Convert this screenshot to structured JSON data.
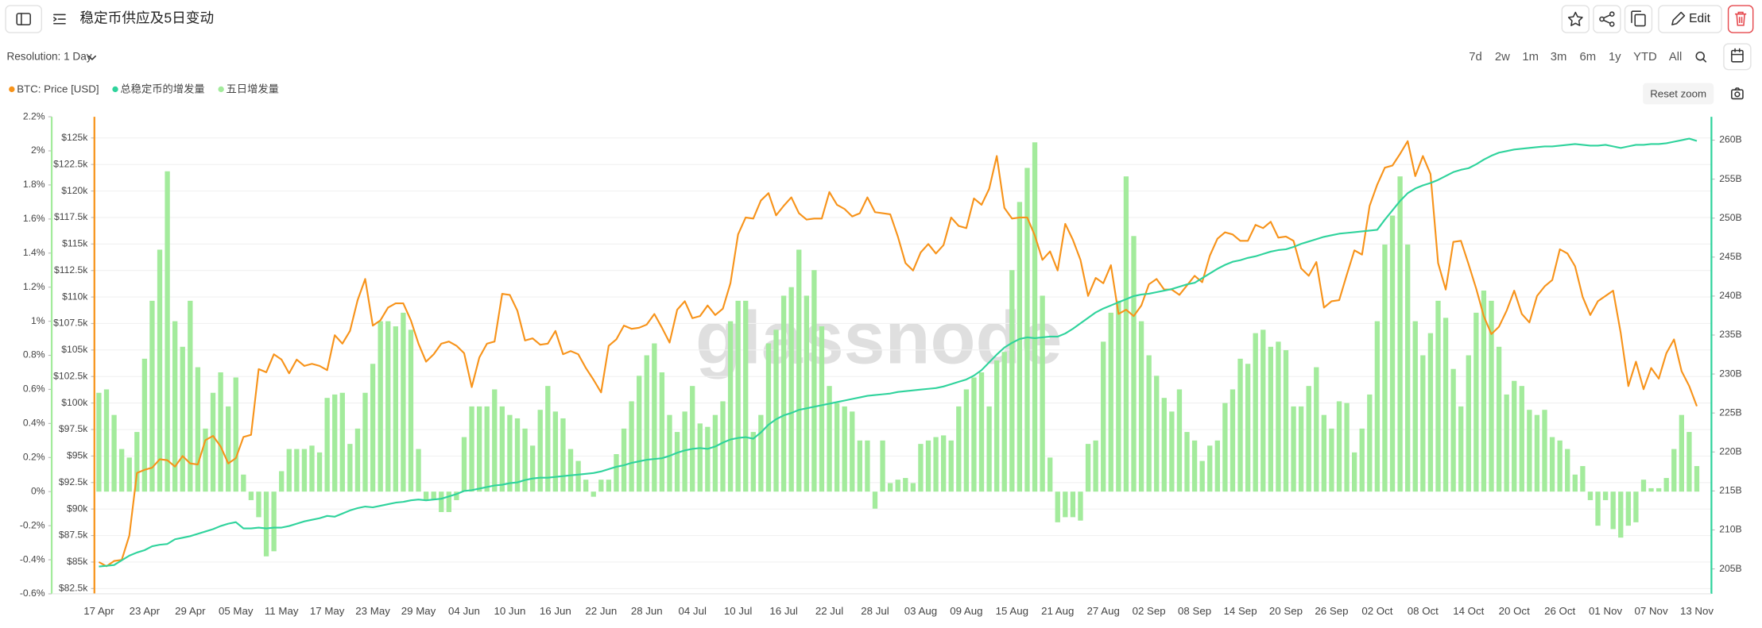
{
  "toolbar": {
    "resolution": "Resolution: 1 Day",
    "ranges": [
      "7d",
      "2w",
      "1m",
      "3m",
      "6m",
      "1y",
      "YTD",
      "All"
    ],
    "edit": "Edit",
    "reset_zoom": "Reset zoom",
    "watermark": "glassnode"
  },
  "chart_data": {
    "type": "combo",
    "title": "稳定币供应及5日变动",
    "grid": true,
    "categories": [
      "17 Apr",
      null,
      null,
      null,
      null,
      null,
      "23 Apr",
      null,
      null,
      null,
      null,
      null,
      "29 Apr",
      null,
      null,
      null,
      null,
      null,
      "05 May",
      null,
      null,
      null,
      null,
      null,
      "11 May",
      null,
      null,
      null,
      null,
      null,
      "17 May",
      null,
      null,
      null,
      null,
      null,
      "23 May",
      null,
      null,
      null,
      null,
      null,
      "29 May",
      null,
      null,
      null,
      null,
      null,
      "04 Jun",
      null,
      null,
      null,
      null,
      null,
      "10 Jun",
      null,
      null,
      null,
      null,
      null,
      "16 Jun",
      null,
      null,
      null,
      null,
      null,
      "22 Jun",
      null,
      null,
      null,
      null,
      null,
      "28 Jun",
      null,
      null,
      null,
      null,
      null,
      "04 Jul",
      null,
      null,
      null,
      null,
      null,
      "10 Jul",
      null,
      null,
      null,
      null,
      null,
      "16 Jul",
      null,
      null,
      null,
      null,
      null,
      "22 Jul",
      null,
      null,
      null,
      null,
      null,
      "28 Jul",
      null,
      null,
      null,
      null,
      null,
      "03 Aug",
      null,
      null,
      null,
      null,
      null,
      "09 Aug",
      null,
      null,
      null,
      null,
      null,
      "15 Aug",
      null,
      null,
      null,
      null,
      null,
      "21 Aug",
      null,
      null,
      null,
      null,
      null,
      "27 Aug",
      null,
      null,
      null,
      null,
      null,
      "02 Sep",
      null,
      null,
      null,
      null,
      null,
      "08 Sep",
      null,
      null,
      null,
      null,
      null,
      "14 Sep",
      null,
      null,
      null,
      null,
      null,
      "20 Sep",
      null,
      null,
      null,
      null,
      null,
      "26 Sep",
      null,
      null,
      null,
      null,
      null,
      "02 Oct",
      null,
      null,
      null,
      null,
      null,
      "08 Oct",
      null,
      null,
      null,
      null,
      null,
      "14 Oct",
      null,
      null,
      null,
      null,
      null,
      "20 Oct",
      null,
      null,
      null,
      null,
      null,
      "26 Oct",
      null,
      null,
      null,
      null,
      null,
      "01 Nov",
      null,
      null,
      null,
      null,
      null,
      "07 Nov",
      null,
      null,
      null,
      null,
      null,
      "13 Nov"
    ],
    "ylim": [
      -0.6,
      2.2
    ],
    "yticks": [
      {
        "value": -0.6,
        "label": "-0.6%"
      },
      {
        "value": -0.4,
        "label": "-0.4%"
      },
      {
        "value": -0.2,
        "label": "-0.2%"
      },
      {
        "value": 0,
        "label": "0%"
      },
      {
        "value": 0.2,
        "label": "0.2%"
      },
      {
        "value": 0.4,
        "label": "0.4%"
      },
      {
        "value": 0.6,
        "label": "0.6%"
      },
      {
        "value": 0.8,
        "label": "0.8%"
      },
      {
        "value": 1,
        "label": "1%"
      },
      {
        "value": 1.2,
        "label": "1.2%"
      },
      {
        "value": 1.4,
        "label": "1.4%"
      },
      {
        "value": 1.6,
        "label": "1.6%"
      },
      {
        "value": 1.8,
        "label": "1.8%"
      },
      {
        "value": 2,
        "label": "2%"
      },
      {
        "value": 2.2,
        "label": "2.2%"
      }
    ],
    "y2lim": [
      82,
      127
    ],
    "y2ticks": [
      {
        "value": 82.5,
        "label": "$82.5k"
      },
      {
        "value": 85,
        "label": "$85k"
      },
      {
        "value": 87.5,
        "label": "$87.5k"
      },
      {
        "value": 90,
        "label": "$90k"
      },
      {
        "value": 92.5,
        "label": "$92.5k"
      },
      {
        "value": 95,
        "label": "$95k"
      },
      {
        "value": 97.5,
        "label": "$97.5k"
      },
      {
        "value": 100,
        "label": "$100k"
      },
      {
        "value": 102.5,
        "label": "$102.5k"
      },
      {
        "value": 105,
        "label": "$105k"
      },
      {
        "value": 107.5,
        "label": "$107.5k"
      },
      {
        "value": 110,
        "label": "$110k"
      },
      {
        "value": 112.5,
        "label": "$112.5k"
      },
      {
        "value": 115,
        "label": "$115k"
      },
      {
        "value": 117.5,
        "label": "$117.5k"
      },
      {
        "value": 120,
        "label": "$120k"
      },
      {
        "value": 122.5,
        "label": "$122.5k"
      },
      {
        "value": 125,
        "label": "$125k"
      }
    ],
    "y3lim": [
      201.8,
      263
    ],
    "y3ticks": [
      {
        "value": 205,
        "label": "205B"
      },
      {
        "value": 210,
        "label": "210B"
      },
      {
        "value": 215,
        "label": "215B"
      },
      {
        "value": 220,
        "label": "220B"
      },
      {
        "value": 225,
        "label": "225B"
      },
      {
        "value": 230,
        "label": "230B"
      },
      {
        "value": 235,
        "label": "235B"
      },
      {
        "value": 240,
        "label": "240B"
      },
      {
        "value": 245,
        "label": "245B"
      },
      {
        "value": 250,
        "label": "250B"
      },
      {
        "value": 255,
        "label": "255B"
      },
      {
        "value": 260,
        "label": "260B"
      }
    ],
    "series": [
      {
        "name": "BTC: Price [USD]",
        "type": "line",
        "axis": "y2",
        "color": "#f7931a",
        "values": [
          85.0,
          84.6,
          85.1,
          85.2,
          87.5,
          93.4,
          93.7,
          93.9,
          94.7,
          94.6,
          94.0,
          95.0,
          94.3,
          94.2,
          96.5,
          96.9,
          95.9,
          94.3,
          94.8,
          96.8,
          97.0,
          103.2,
          102.9,
          104.6,
          104.1,
          102.8,
          104.1,
          103.5,
          103.7,
          103.5,
          103.1,
          106.4,
          105.6,
          106.8,
          109.7,
          111.7,
          107.3,
          107.8,
          109.0,
          109.4,
          109.4,
          107.8,
          105.6,
          103.9,
          104.6,
          105.6,
          105.8,
          105.4,
          104.7,
          101.5,
          104.3,
          105.6,
          105.8,
          110.3,
          110.2,
          108.7,
          105.9,
          106.1,
          105.5,
          105.6,
          106.8,
          104.6,
          104.9,
          104.6,
          103.3,
          102.2,
          101.0,
          105.4,
          106.0,
          107.3,
          107.0,
          107.1,
          107.4,
          108.4,
          107.1,
          105.7,
          108.8,
          109.6,
          108.0,
          108.2,
          109.2,
          108.3,
          108.9,
          111.3,
          115.9,
          117.5,
          117.4,
          119.1,
          119.8,
          117.7,
          118.6,
          119.4,
          117.9,
          117.3,
          117.4,
          117.4,
          119.9,
          118.7,
          118.3,
          117.6,
          117.9,
          119.4,
          118.0,
          117.9,
          117.8,
          115.7,
          113.2,
          112.5,
          114.2,
          115.0,
          114.1,
          114.9,
          117.5,
          116.7,
          116.5,
          119.3,
          118.7,
          120.2,
          123.3,
          118.4,
          117.4,
          117.5,
          117.5,
          115.8,
          113.5,
          114.3,
          112.5,
          116.9,
          115.4,
          113.5,
          110.1,
          111.8,
          111.3,
          113.0,
          108.4,
          108.8,
          108.2,
          109.2,
          111.2,
          111.7,
          110.7,
          110.7,
          110.2,
          111.1,
          112.0,
          111.4,
          113.9,
          115.5,
          116.1,
          115.9,
          115.3,
          115.3,
          116.8,
          116.5,
          117.1,
          115.6,
          115.7,
          115.3,
          112.7,
          112.0,
          113.3,
          109.0,
          109.6,
          109.7,
          112.1,
          114.4,
          114.0,
          118.6,
          120.6,
          122.2,
          122.4,
          123.5,
          124.7,
          121.4,
          123.3,
          121.6,
          113.2,
          110.7,
          115.2,
          115.3,
          113.1,
          110.8,
          108.2,
          106.5,
          107.2,
          108.7,
          110.6,
          108.4,
          107.6,
          110.1,
          111.0,
          111.6,
          114.5,
          114.1,
          112.9,
          110.0,
          108.3,
          109.6,
          110.1,
          110.6,
          106.6,
          101.6,
          103.9,
          101.3,
          103.3,
          102.3,
          104.7,
          106.0,
          103.0,
          101.6,
          99.7
        ]
      },
      {
        "name": "总稳定币的增发量",
        "type": "line",
        "axis": "y3",
        "color": "#2fd39c",
        "values": [
          205.3,
          205.4,
          205.5,
          206.1,
          206.7,
          207.1,
          207.4,
          207.9,
          208.1,
          208.2,
          208.8,
          209.0,
          209.2,
          209.5,
          209.8,
          210.1,
          210.5,
          210.8,
          211.0,
          210.2,
          210.2,
          210.3,
          210.2,
          210.3,
          210.3,
          210.5,
          210.8,
          211.1,
          211.3,
          211.5,
          211.8,
          211.7,
          212.1,
          212.5,
          212.8,
          213.0,
          212.9,
          213.1,
          213.3,
          213.5,
          213.6,
          213.8,
          213.9,
          213.8,
          213.9,
          214.0,
          214.3,
          214.6,
          215.0,
          215.1,
          215.3,
          215.5,
          215.7,
          215.8,
          216.0,
          216.1,
          216.4,
          216.6,
          216.7,
          216.7,
          216.8,
          216.9,
          217.0,
          217.1,
          217.2,
          217.3,
          217.5,
          217.8,
          218.1,
          218.3,
          218.6,
          218.8,
          219.0,
          219.1,
          219.2,
          219.5,
          219.9,
          220.2,
          220.4,
          220.5,
          220.4,
          220.7,
          221.2,
          221.6,
          221.8,
          221.9,
          221.7,
          222.5,
          223.5,
          224.2,
          224.7,
          225.0,
          225.4,
          225.6,
          225.8,
          226.0,
          226.2,
          226.4,
          226.6,
          226.8,
          227.0,
          227.2,
          227.3,
          227.4,
          227.5,
          227.7,
          227.8,
          227.9,
          228.0,
          228.1,
          228.2,
          228.4,
          228.7,
          229.0,
          229.3,
          229.8,
          230.5,
          231.5,
          232.5,
          233.4,
          234.0,
          234.5,
          234.7,
          234.6,
          234.7,
          234.8,
          234.8,
          235.2,
          235.8,
          236.5,
          237.2,
          237.9,
          238.4,
          238.8,
          239.2,
          239.6,
          240.0,
          240.2,
          240.3,
          240.5,
          240.7,
          240.9,
          241.2,
          241.5,
          241.7,
          242.3,
          242.9,
          243.5,
          244.0,
          244.4,
          244.6,
          244.9,
          245.1,
          245.4,
          245.7,
          245.9,
          246.0,
          246.3,
          246.7,
          247.0,
          247.3,
          247.6,
          247.8,
          248.0,
          248.1,
          248.2,
          248.3,
          248.4,
          248.5,
          249.8,
          251.0,
          252.2,
          253.2,
          253.8,
          254.2,
          254.5,
          254.9,
          255.4,
          255.9,
          256.2,
          256.4,
          256.9,
          257.5,
          258.0,
          258.4,
          258.6,
          258.8,
          258.9,
          259.0,
          259.1,
          259.2,
          259.2,
          259.3,
          259.4,
          259.5,
          259.4,
          259.3,
          259.3,
          259.4,
          259.2,
          259.0,
          259.2,
          259.4,
          259.4,
          259.5,
          259.5,
          259.6,
          259.8,
          260.0,
          260.2,
          259.9
        ]
      },
      {
        "name": "五日增发量",
        "type": "bar",
        "axis": "y",
        "color": "#a3eb9c",
        "values": [
          0.58,
          0.6,
          0.45,
          0.25,
          0.2,
          0.35,
          0.78,
          1.12,
          1.42,
          1.88,
          1.0,
          0.85,
          1.12,
          0.73,
          0.37,
          0.58,
          0.7,
          0.5,
          0.67,
          0.1,
          -0.05,
          -0.15,
          -0.38,
          -0.35,
          0.12,
          0.25,
          0.25,
          0.25,
          0.27,
          0.23,
          0.55,
          0.57,
          0.58,
          0.28,
          0.37,
          0.58,
          0.75,
          1.0,
          1.0,
          0.97,
          1.05,
          0.95,
          0.25,
          -0.05,
          -0.05,
          -0.12,
          -0.12,
          -0.05,
          0.32,
          0.5,
          0.5,
          0.5,
          0.6,
          0.5,
          0.45,
          0.43,
          0.37,
          0.27,
          0.48,
          0.62,
          0.47,
          0.43,
          0.25,
          0.18,
          0.07,
          -0.03,
          0.07,
          0.07,
          0.22,
          0.37,
          0.53,
          0.68,
          0.8,
          0.87,
          0.7,
          0.45,
          0.35,
          0.47,
          0.62,
          0.4,
          0.38,
          0.45,
          0.53,
          1.0,
          1.12,
          1.12,
          0.35,
          0.45,
          0.87,
          0.95,
          1.15,
          1.2,
          1.42,
          1.15,
          1.3,
          0.97,
          0.62,
          0.52,
          0.5,
          0.47,
          0.3,
          0.3,
          -0.1,
          0.3,
          0.05,
          0.07,
          0.08,
          0.05,
          0.28,
          0.3,
          0.32,
          0.33,
          0.3,
          0.5,
          0.6,
          0.67,
          0.7,
          0.5,
          0.77,
          0.82,
          1.3,
          1.7,
          1.9,
          2.05,
          1.15,
          0.2,
          -0.18,
          -0.15,
          -0.15,
          -0.17,
          0.28,
          0.3,
          0.88,
          1.05,
          1.12,
          1.85,
          1.5,
          1.0,
          0.8,
          0.68,
          0.55,
          0.47,
          0.6,
          0.35,
          0.3,
          0.18,
          0.27,
          0.3,
          0.52,
          0.6,
          0.78,
          0.75,
          0.93,
          0.95,
          0.85,
          0.88,
          0.83,
          0.5,
          0.5,
          0.62,
          0.73,
          0.45,
          0.37,
          0.53,
          0.52,
          0.23,
          0.37,
          0.57,
          1.0,
          1.45,
          1.62,
          1.85,
          1.45,
          1.0,
          0.8,
          0.93,
          1.12,
          1.02,
          0.72,
          0.5,
          0.8,
          1.05,
          1.18,
          1.12,
          0.85,
          0.57,
          0.65,
          0.62,
          0.48,
          0.45,
          0.48,
          0.32,
          0.3,
          0.25,
          0.1,
          0.15,
          -0.05,
          -0.2,
          -0.05,
          -0.22,
          -0.27,
          -0.2,
          -0.18,
          0.07,
          0.02,
          0.02,
          0.08,
          0.25,
          0.45,
          0.35,
          0.15
        ]
      }
    ]
  }
}
